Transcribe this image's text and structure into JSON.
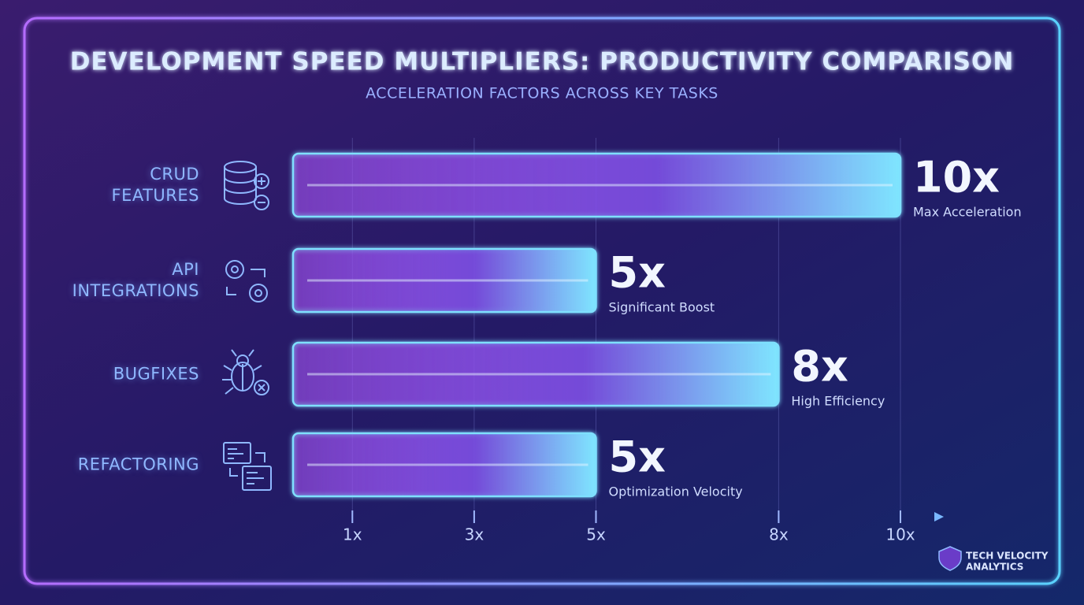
{
  "chart_data": {
    "type": "bar",
    "orientation": "horizontal",
    "title": "DEVELOPMENT SPEED MULTIPLIERS: PRODUCTIVITY COMPARISON",
    "subtitle": "ACCELERATION FACTORS ACROSS KEY TASKS",
    "categories": [
      "CRUD FEATURES",
      "API INTEGRATIONS",
      "BUGFIXES",
      "REFACTORING"
    ],
    "values": [
      10,
      5,
      8,
      5
    ],
    "value_labels": [
      "10x",
      "5x",
      "8x",
      "5x"
    ],
    "annotations": [
      "Max Acceleration",
      "Significant Boost",
      "High Efficiency",
      "Optimization Velocity"
    ],
    "color": "#a855f7",
    "xlim": [
      0,
      10
    ],
    "xticks": [
      {
        "value": 1,
        "label": "1x"
      },
      {
        "value": 3,
        "label": "3x"
      },
      {
        "value": 5,
        "label": "5x"
      },
      {
        "value": 8,
        "label": "8x"
      },
      {
        "value": 10,
        "label": "10x"
      }
    ],
    "grid": true
  },
  "brand": [
    "TECH VELOCITY",
    "ANALYTICS"
  ]
}
